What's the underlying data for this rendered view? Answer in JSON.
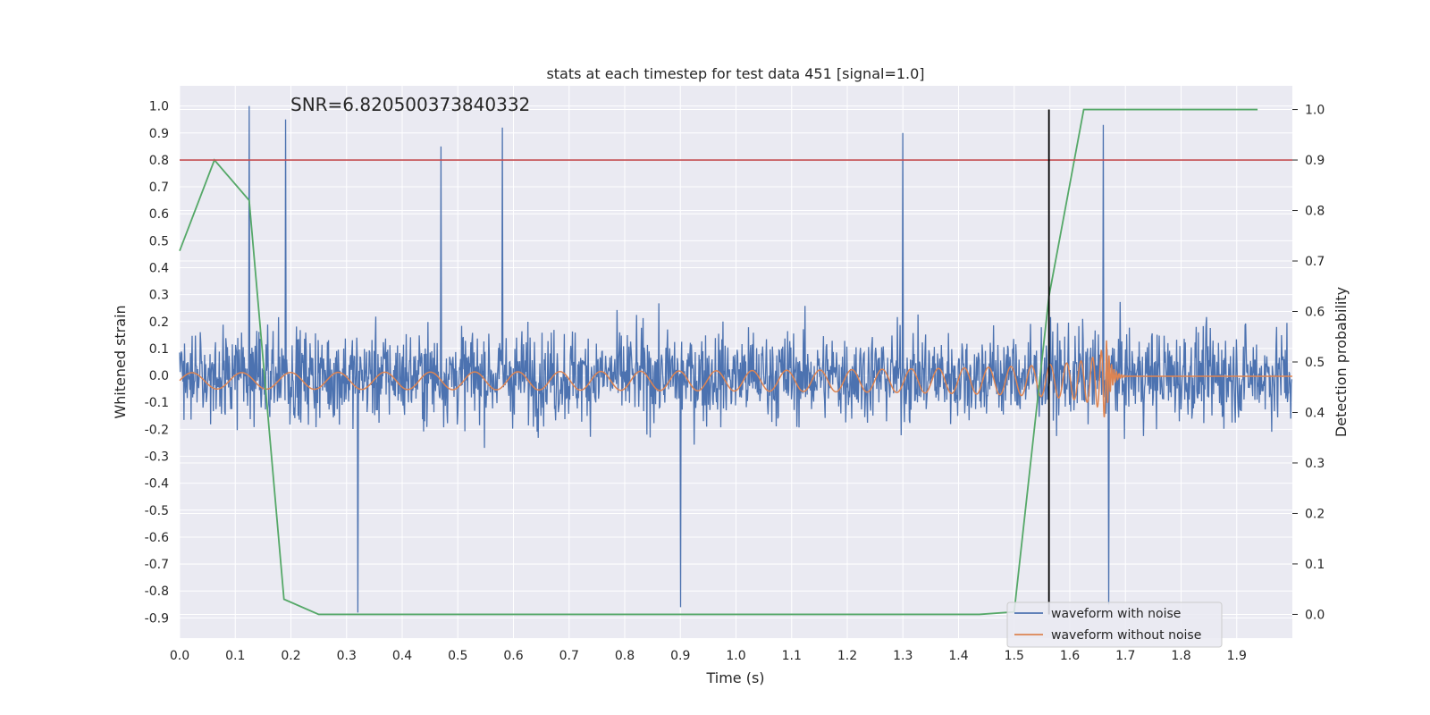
{
  "chart_data": {
    "type": "line",
    "title": "stats at each timestep for test data 451 [signal=1.0]",
    "xlabel": "Time (s)",
    "ylabel": "Whitened strain",
    "y2label": "Detection probability",
    "annotation": "SNR=6.820500373840332",
    "xlim": [
      0.0,
      2.0
    ],
    "ylim": [
      -0.975,
      1.075
    ],
    "y2lim": [
      -0.047,
      1.047
    ],
    "xticks": [
      "0.0",
      "0.1",
      "0.2",
      "0.3",
      "0.4",
      "0.5",
      "0.6",
      "0.7",
      "0.8",
      "0.9",
      "1.0",
      "1.1",
      "1.2",
      "1.3",
      "1.4",
      "1.5",
      "1.6",
      "1.7",
      "1.8",
      "1.9"
    ],
    "yticks": [
      "1.0",
      "0.9",
      "0.8",
      "0.7",
      "0.6",
      "0.5",
      "0.4",
      "0.3",
      "0.2",
      "0.1",
      "0.0",
      "-0.1",
      "-0.2",
      "-0.3",
      "-0.4",
      "-0.5",
      "-0.6",
      "-0.7",
      "-0.8",
      "-0.9"
    ],
    "y2ticks": [
      "1.0",
      "0.9",
      "0.8",
      "0.7",
      "0.6",
      "0.5",
      "0.4",
      "0.3",
      "0.2",
      "0.1",
      "0.0"
    ],
    "grid": true,
    "legend_placement": "lower-right",
    "series": [
      {
        "name": "waveform with noise",
        "color": "#4c72b0",
        "axis": "left",
        "style": "dense noise, roughly within [-0.9, 1.0], spikes near 0.95-1.0 at t≈0.12, 0.19, 0.58, 1.30, 1.66",
        "spikes": [
          [
            0.125,
            1.0
          ],
          [
            0.19,
            0.95
          ],
          [
            0.47,
            0.85
          ],
          [
            0.58,
            0.92
          ],
          [
            1.3,
            0.9
          ],
          [
            1.66,
            0.93
          ],
          [
            0.32,
            -0.88
          ],
          [
            0.9,
            -0.86
          ],
          [
            1.67,
            -0.85
          ]
        ]
      },
      {
        "name": "waveform without noise",
        "color": "#dd8452",
        "axis": "left",
        "chirp": {
          "t_start": 0.0,
          "t_merge": 1.665,
          "amp_start": 0.03,
          "amp_peak": 0.3,
          "f_start": 11
        }
      },
      {
        "color": "#55a868",
        "axis": "right",
        "x": [
          0.0,
          0.0625,
          0.125,
          0.1875,
          0.25,
          0.3125,
          0.375,
          0.4375,
          0.5,
          0.5625,
          0.625,
          0.6875,
          0.75,
          0.8125,
          0.875,
          0.9375,
          1.0,
          1.0625,
          1.125,
          1.1875,
          1.25,
          1.3125,
          1.375,
          1.4375,
          1.5,
          1.5625,
          1.625,
          1.6875,
          1.75,
          1.8125,
          1.875,
          1.9375
        ],
        "values": [
          0.72,
          0.9,
          0.82,
          0.03,
          0.0,
          0.0,
          0.0,
          0.0,
          0.0,
          0.0,
          0.0,
          0.0,
          0.0,
          0.0,
          0.0,
          0.0,
          0.0,
          0.0,
          0.0,
          0.0,
          0.0,
          0.0,
          0.0,
          0.0,
          0.005,
          0.63,
          1.0,
          1.0,
          1.0,
          1.0,
          1.0,
          1.0
        ]
      }
    ],
    "hlines": [
      {
        "axis": "right",
        "y": 0.9,
        "color": "#c44e52"
      }
    ],
    "vlines": [
      {
        "x": 1.5625,
        "color": "#000000",
        "y2_from": 0.0,
        "y2_to": 1.0
      }
    ],
    "colors": {
      "plot_bg": "#eaeaf2",
      "grid": "#ffffff",
      "text": "#262626"
    }
  }
}
